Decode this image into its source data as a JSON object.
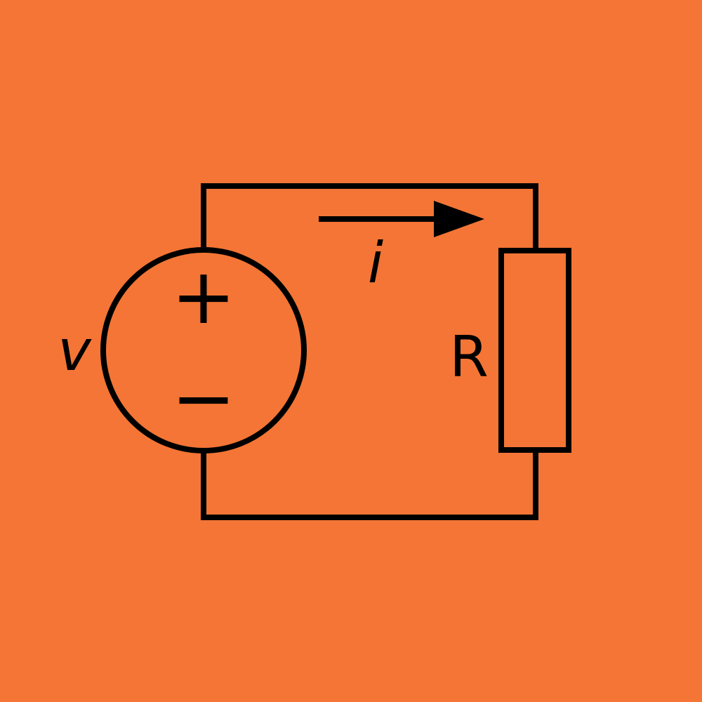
{
  "colors": {
    "background": "#F47535",
    "stroke": "#000000"
  },
  "labels": {
    "voltage": "v",
    "current": "i",
    "resistance": "R",
    "plus": "+",
    "minus": "−"
  }
}
